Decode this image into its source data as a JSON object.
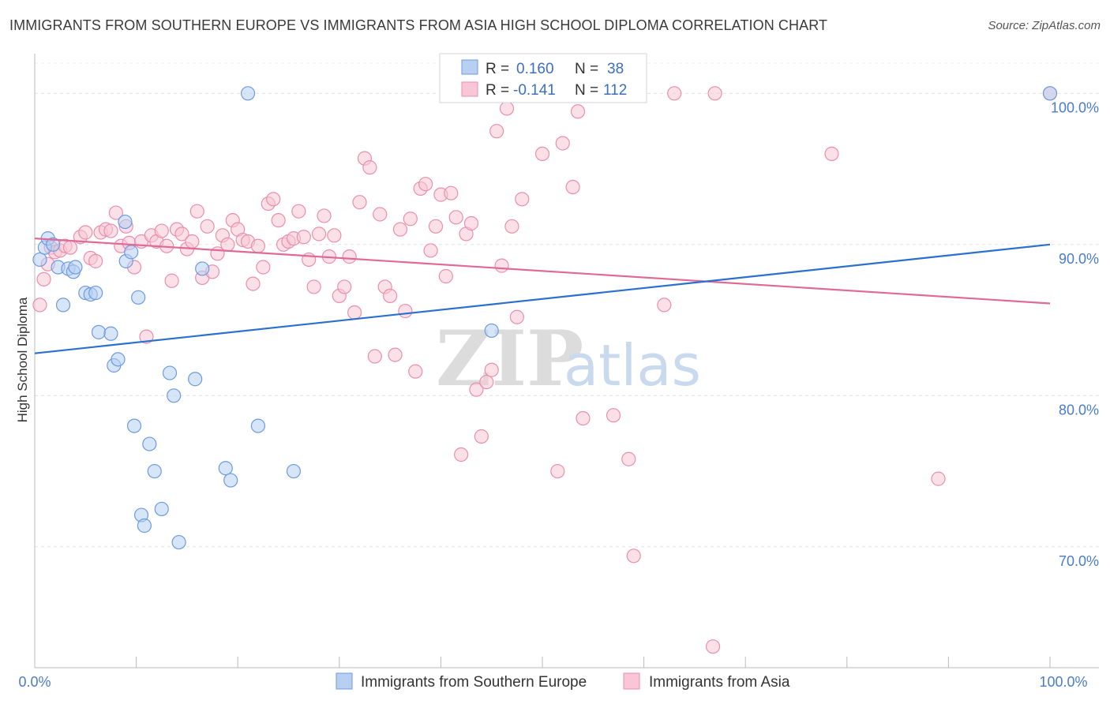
{
  "header": {
    "title": "IMMIGRANTS FROM SOUTHERN EUROPE VS IMMIGRANTS FROM ASIA HIGH SCHOOL DIPLOMA CORRELATION CHART",
    "source": "Source: ZipAtlas.com"
  },
  "watermark": {
    "zip": "ZIP",
    "atlas": "atlas"
  },
  "colors": {
    "blue_fill": "#b7d0f2",
    "blue_stroke": "#6d9be0",
    "blue_line": "#2b6fcf",
    "pink_fill": "#f8c6d6",
    "pink_stroke": "#ea8fae",
    "pink_line": "#e06a96"
  },
  "legend": {
    "r_label": "R =",
    "n_label": "N =",
    "series1": {
      "r": "0.160",
      "n": "38"
    },
    "series2": {
      "r": "-0.141",
      "n": "112"
    }
  },
  "chart_data": {
    "type": "scatter",
    "title": "IMMIGRANTS FROM SOUTHERN EUROPE VS IMMIGRANTS FROM ASIA HIGH SCHOOL DIPLOMA CORRELATION CHART",
    "xlabel": "",
    "ylabel": "High School Diploma",
    "xlim": [
      0,
      100
    ],
    "ylim": [
      62,
      102
    ],
    "x_tick_labels": [
      "0.0%",
      "100.0%"
    ],
    "y_ticks": [
      70,
      80,
      90,
      100
    ],
    "y_tick_labels": [
      "70.0%",
      "80.0%",
      "90.0%",
      "100.0%"
    ],
    "grid": true,
    "legend_position": "top-center",
    "series": [
      {
        "name": "Immigrants from Southern Europe",
        "r": 0.16,
        "n": 38,
        "trend": {
          "x": [
            0,
            100
          ],
          "y": [
            82.8,
            90.0
          ]
        },
        "points": [
          [
            0.5,
            89.0
          ],
          [
            1.0,
            89.8
          ],
          [
            1.3,
            90.4
          ],
          [
            1.8,
            90.0
          ],
          [
            2.3,
            88.5
          ],
          [
            2.8,
            86.0
          ],
          [
            3.3,
            88.4
          ],
          [
            3.8,
            88.2
          ],
          [
            4.0,
            88.5
          ],
          [
            5.0,
            86.8
          ],
          [
            5.5,
            86.7
          ],
          [
            6.0,
            86.8
          ],
          [
            6.3,
            84.2
          ],
          [
            7.5,
            84.1
          ],
          [
            7.8,
            82.0
          ],
          [
            8.2,
            82.4
          ],
          [
            8.9,
            91.5
          ],
          [
            9.0,
            88.9
          ],
          [
            9.5,
            89.5
          ],
          [
            9.8,
            78.0
          ],
          [
            10.2,
            86.5
          ],
          [
            10.5,
            72.1
          ],
          [
            10.8,
            71.4
          ],
          [
            11.3,
            76.8
          ],
          [
            11.8,
            75.0
          ],
          [
            12.5,
            72.5
          ],
          [
            13.3,
            81.5
          ],
          [
            13.7,
            80.0
          ],
          [
            14.2,
            70.3
          ],
          [
            15.8,
            81.1
          ],
          [
            16.5,
            88.4
          ],
          [
            18.8,
            75.2
          ],
          [
            19.3,
            74.4
          ],
          [
            21.0,
            100.0
          ],
          [
            22.0,
            78.0
          ],
          [
            25.5,
            75.0
          ],
          [
            45.0,
            84.3
          ],
          [
            100.0,
            100.0
          ]
        ]
      },
      {
        "name": "Immigrants from Asia",
        "r": -0.141,
        "n": 112,
        "trend": {
          "x": [
            0,
            100
          ],
          "y": [
            90.4,
            86.1
          ]
        },
        "points": [
          [
            0.5,
            86.0
          ],
          [
            0.9,
            87.7
          ],
          [
            1.3,
            88.7
          ],
          [
            1.6,
            89.8
          ],
          [
            2.0,
            89.5
          ],
          [
            2.5,
            89.6
          ],
          [
            3.0,
            89.9
          ],
          [
            3.5,
            89.8
          ],
          [
            4.5,
            90.5
          ],
          [
            5.0,
            90.8
          ],
          [
            5.5,
            89.1
          ],
          [
            6.0,
            88.9
          ],
          [
            6.5,
            90.8
          ],
          [
            7.0,
            91.0
          ],
          [
            7.5,
            90.9
          ],
          [
            8.0,
            92.1
          ],
          [
            8.5,
            89.9
          ],
          [
            9.0,
            91.2
          ],
          [
            9.3,
            90.1
          ],
          [
            9.8,
            88.5
          ],
          [
            10.5,
            90.2
          ],
          [
            11.0,
            83.9
          ],
          [
            11.5,
            90.6
          ],
          [
            12.0,
            90.2
          ],
          [
            12.5,
            90.9
          ],
          [
            13.0,
            89.9
          ],
          [
            13.5,
            87.6
          ],
          [
            14.0,
            91.0
          ],
          [
            14.5,
            90.7
          ],
          [
            15.0,
            89.7
          ],
          [
            15.5,
            90.2
          ],
          [
            16.0,
            92.2
          ],
          [
            16.5,
            87.8
          ],
          [
            17.0,
            91.2
          ],
          [
            17.5,
            88.2
          ],
          [
            18.0,
            89.4
          ],
          [
            18.5,
            90.6
          ],
          [
            19.0,
            90.0
          ],
          [
            19.5,
            91.6
          ],
          [
            20.0,
            91.0
          ],
          [
            20.5,
            90.3
          ],
          [
            21.0,
            90.2
          ],
          [
            21.5,
            87.4
          ],
          [
            22.0,
            89.9
          ],
          [
            22.5,
            88.5
          ],
          [
            23.0,
            92.7
          ],
          [
            23.5,
            93.0
          ],
          [
            24.0,
            91.6
          ],
          [
            24.5,
            90.0
          ],
          [
            25.0,
            90.2
          ],
          [
            25.5,
            90.4
          ],
          [
            26.0,
            92.2
          ],
          [
            26.5,
            90.5
          ],
          [
            27.0,
            89.0
          ],
          [
            27.5,
            87.2
          ],
          [
            28.0,
            90.7
          ],
          [
            28.5,
            91.9
          ],
          [
            29.0,
            89.2
          ],
          [
            29.5,
            90.6
          ],
          [
            30.0,
            86.6
          ],
          [
            30.5,
            87.2
          ],
          [
            31.0,
            89.2
          ],
          [
            31.5,
            85.5
          ],
          [
            32.0,
            92.8
          ],
          [
            32.5,
            95.7
          ],
          [
            33.0,
            95.1
          ],
          [
            33.5,
            82.6
          ],
          [
            34.0,
            92.0
          ],
          [
            34.5,
            87.2
          ],
          [
            35.0,
            86.6
          ],
          [
            35.5,
            82.7
          ],
          [
            36.0,
            91.0
          ],
          [
            36.5,
            85.6
          ],
          [
            37.0,
            91.7
          ],
          [
            37.5,
            81.6
          ],
          [
            38.0,
            93.7
          ],
          [
            38.5,
            94.0
          ],
          [
            39.0,
            89.6
          ],
          [
            39.5,
            91.2
          ],
          [
            40.0,
            93.3
          ],
          [
            40.5,
            87.9
          ],
          [
            41.0,
            93.4
          ],
          [
            41.5,
            91.8
          ],
          [
            42.0,
            76.1
          ],
          [
            42.5,
            90.7
          ],
          [
            43.0,
            91.4
          ],
          [
            43.5,
            80.4
          ],
          [
            44.0,
            77.3
          ],
          [
            44.5,
            80.9
          ],
          [
            45.0,
            81.7
          ],
          [
            45.5,
            97.5
          ],
          [
            46.0,
            88.6
          ],
          [
            46.5,
            99.0
          ],
          [
            47.0,
            91.2
          ],
          [
            47.5,
            85.2
          ],
          [
            48.0,
            93.0
          ],
          [
            50.0,
            96.0
          ],
          [
            51.5,
            75.0
          ],
          [
            52.0,
            96.7
          ],
          [
            53.0,
            93.8
          ],
          [
            53.5,
            98.8
          ],
          [
            54.0,
            78.5
          ],
          [
            57.0,
            78.7
          ],
          [
            58.5,
            75.8
          ],
          [
            59.0,
            69.4
          ],
          [
            62.0,
            86.0
          ],
          [
            63.0,
            100.0
          ],
          [
            66.8,
            63.4
          ],
          [
            67.0,
            100.0
          ],
          [
            78.5,
            96.0
          ],
          [
            89.0,
            74.5
          ],
          [
            100.0,
            100.0
          ]
        ]
      }
    ]
  }
}
